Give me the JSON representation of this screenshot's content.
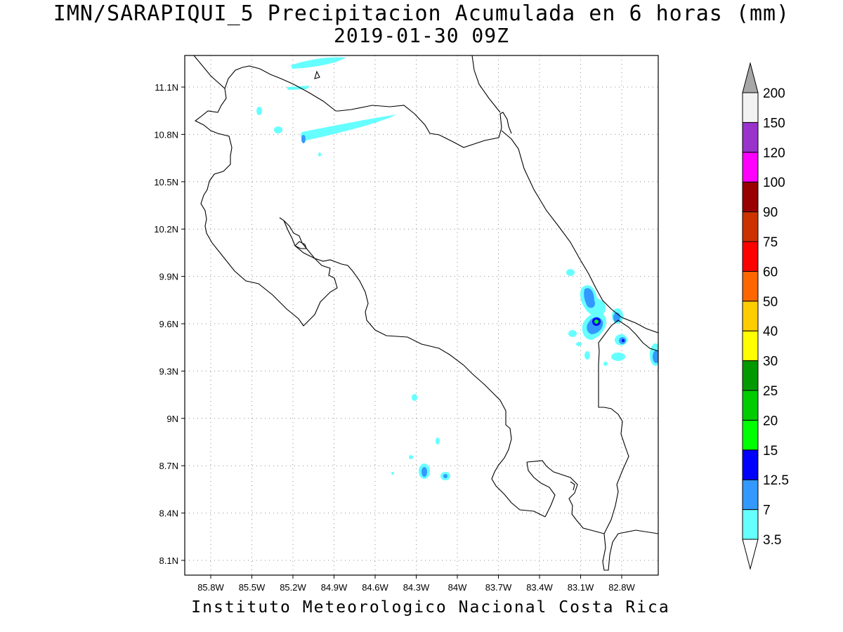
{
  "title": {
    "line1": "IMN/SARAPIQUI_5 Precipitacion Acumulada en 6 horas (mm)",
    "line2": "2019-01-30 09Z"
  },
  "footer": "Instituto Meteorologico Nacional Costa Rica",
  "map": {
    "lon_range": [
      -86.0,
      -82.6
    ],
    "lat_range": [
      8.0,
      11.3
    ],
    "lon_ticks": [
      {
        "value": -85.8,
        "label": "85.8W"
      },
      {
        "value": -85.5,
        "label": "85.5W"
      },
      {
        "value": -85.2,
        "label": "85.2W"
      },
      {
        "value": -84.9,
        "label": "84.9W"
      },
      {
        "value": -84.6,
        "label": "84.6W"
      },
      {
        "value": -84.3,
        "label": "84.3W"
      },
      {
        "value": -84.0,
        "label": "84W"
      },
      {
        "value": -83.7,
        "label": "83.7W"
      },
      {
        "value": -83.4,
        "label": "83.4W"
      },
      {
        "value": -83.1,
        "label": "83.1W"
      },
      {
        "value": -82.8,
        "label": "82.8W"
      }
    ],
    "lat_ticks": [
      {
        "value": 8.1,
        "label": "8.1N"
      },
      {
        "value": 8.4,
        "label": "8.4N"
      },
      {
        "value": 8.7,
        "label": "8.7N"
      },
      {
        "value": 9.0,
        "label": "9N"
      },
      {
        "value": 9.3,
        "label": "9.3N"
      },
      {
        "value": 9.6,
        "label": "9.6N"
      },
      {
        "value": 9.9,
        "label": "9.9N"
      },
      {
        "value": 10.2,
        "label": "10.2N"
      },
      {
        "value": 10.5,
        "label": "10.5N"
      },
      {
        "value": 10.8,
        "label": "10.8N"
      },
      {
        "value": 11.1,
        "label": "11.1N"
      }
    ],
    "grid": true
  },
  "colorbar": {
    "levels": [
      "3.5",
      "7",
      "12.5",
      "15",
      "20",
      "25",
      "30",
      "40",
      "50",
      "60",
      "75",
      "90",
      "100",
      "120",
      "150",
      "200"
    ],
    "colors": [
      "#ffffff",
      "#66ffff",
      "#3399ff",
      "#0000ff",
      "#00ff00",
      "#00cc00",
      "#009900",
      "#ffff00",
      "#ffcc00",
      "#ff6600",
      "#ff0000",
      "#cc3300",
      "#990000",
      "#ff00ff",
      "#9933cc",
      "#f2f2f2",
      "#a6a6a6"
    ]
  }
}
